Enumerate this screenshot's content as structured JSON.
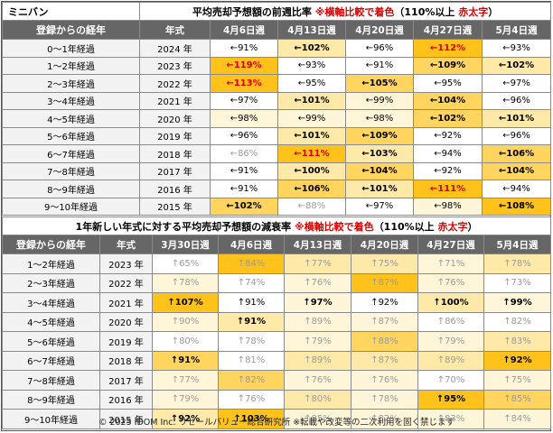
{
  "table1": {
    "corner": "ミニバン",
    "title_prefix": "平均売却予想額の前週比率 ",
    "title_note": "※横軸比較で着色",
    "title_paren_open": "（110%以上 ",
    "title_bold_red": "赤太字",
    "title_paren_close": "）",
    "col_label": "登録からの経年",
    "col_year": "年式",
    "weeks": [
      "4月6日週",
      "4月13日週",
      "4月20日週",
      "4月27日週",
      "5月4日週"
    ],
    "rows": [
      {
        "label": "0～1年経過",
        "year": "2024 年",
        "cells": [
          [
            "←91%",
            "0",
            "n"
          ],
          [
            "←102%",
            "2",
            "b"
          ],
          [
            "←96%",
            "0",
            "n"
          ],
          [
            "←112%",
            "4",
            "r"
          ],
          [
            "←93%",
            "0",
            "n"
          ]
        ]
      },
      {
        "label": "1～2年経過",
        "year": "2023 年",
        "cells": [
          [
            "←119%",
            "4",
            "r"
          ],
          [
            "←93%",
            "0",
            "n"
          ],
          [
            "←91%",
            "0",
            "n"
          ],
          [
            "←109%",
            "3",
            "b"
          ],
          [
            "←102%",
            "2",
            "b"
          ]
        ]
      },
      {
        "label": "2～3年経過",
        "year": "2022 年",
        "cells": [
          [
            "←113%",
            "4",
            "r"
          ],
          [
            "←95%",
            "0",
            "n"
          ],
          [
            "←105%",
            "3",
            "b"
          ],
          [
            "←95%",
            "0",
            "n"
          ],
          [
            "←97%",
            "0",
            "n"
          ]
        ]
      },
      {
        "label": "3～4年経過",
        "year": "2021 年",
        "cells": [
          [
            "←97%",
            "0",
            "n"
          ],
          [
            "←101%",
            "2",
            "b"
          ],
          [
            "←99%",
            "1",
            "n"
          ],
          [
            "←104%",
            "3",
            "b"
          ],
          [
            "←96%",
            "0",
            "n"
          ]
        ]
      },
      {
        "label": "4～5年経過",
        "year": "2020 年",
        "cells": [
          [
            "←98%",
            "1",
            "n"
          ],
          [
            "←99%",
            "1",
            "n"
          ],
          [
            "←98%",
            "1",
            "n"
          ],
          [
            "←102%",
            "3",
            "b"
          ],
          [
            "←101%",
            "2",
            "b"
          ]
        ]
      },
      {
        "label": "5～6年経過",
        "year": "2019 年",
        "cells": [
          [
            "←96%",
            "0",
            "n"
          ],
          [
            "←101%",
            "2",
            "b"
          ],
          [
            "←109%",
            "3",
            "b"
          ],
          [
            "←92%",
            "0",
            "n"
          ],
          [
            "←96%",
            "0",
            "n"
          ]
        ]
      },
      {
        "label": "6～7年経過",
        "year": "2018 年",
        "cells": [
          [
            "←86%",
            "0",
            "d"
          ],
          [
            "←111%",
            "4",
            "r"
          ],
          [
            "←103%",
            "2",
            "b"
          ],
          [
            "←94%",
            "0",
            "n"
          ],
          [
            "←106%",
            "3",
            "b"
          ]
        ]
      },
      {
        "label": "7～8年経過",
        "year": "2017 年",
        "cells": [
          [
            "←91%",
            "0",
            "n"
          ],
          [
            "←100%",
            "2",
            "b"
          ],
          [
            "←104%",
            "3",
            "b"
          ],
          [
            "←92%",
            "0",
            "n"
          ],
          [
            "←104%",
            "3",
            "b"
          ]
        ]
      },
      {
        "label": "8～9年経過",
        "year": "2016 年",
        "cells": [
          [
            "←91%",
            "0",
            "n"
          ],
          [
            "←106%",
            "3",
            "b"
          ],
          [
            "←101%",
            "2",
            "b"
          ],
          [
            "←111%",
            "4",
            "r"
          ],
          [
            "←94%",
            "0",
            "n"
          ]
        ]
      },
      {
        "label": "9～10年経過",
        "year": "2015 年",
        "cells": [
          [
            "←102%",
            "3",
            "b"
          ],
          [
            "←88%",
            "0",
            "d"
          ],
          [
            "←97%",
            "0",
            "n"
          ],
          [
            "←98%",
            "1",
            "n"
          ],
          [
            "←108%",
            "4",
            "b"
          ]
        ]
      }
    ]
  },
  "table2": {
    "title_prefix": "1年新しい年式に対する平均売却予想額の減衰率 ",
    "title_note": "※横軸比較で着色",
    "title_paren_open": "（110%以上 ",
    "title_bold_red": "赤太字",
    "title_paren_close": "）",
    "col_label": "登録からの経年",
    "col_year": "年式",
    "weeks": [
      "3月30日週",
      "4月6日週",
      "4月13日週",
      "4月20日週",
      "4月27日週",
      "5月4日週"
    ],
    "rows": [
      {
        "label": "1～2年経過",
        "year": "2023 年",
        "cells": [
          [
            "↑65%",
            "0",
            "d"
          ],
          [
            "↑84%",
            "4",
            "d"
          ],
          [
            "↑77%",
            "2",
            "d"
          ],
          [
            "↑75%",
            "2",
            "d"
          ],
          [
            "↑71%",
            "1",
            "d"
          ],
          [
            "↑78%",
            "2",
            "d"
          ]
        ]
      },
      {
        "label": "2～3年経過",
        "year": "2022 年",
        "cells": [
          [
            "↑78%",
            "1",
            "d"
          ],
          [
            "↑74%",
            "0",
            "d"
          ],
          [
            "↑76%",
            "1",
            "d"
          ],
          [
            "↑87%",
            "4",
            "d"
          ],
          [
            "↑76%",
            "1",
            "d"
          ],
          [
            "↑73%",
            "0",
            "d"
          ]
        ]
      },
      {
        "label": "3～4年経過",
        "year": "2021 年",
        "cells": [
          [
            "↑107%",
            "4",
            "b"
          ],
          [
            "↑91%",
            "0",
            "n"
          ],
          [
            "↑97%",
            "1",
            "b"
          ],
          [
            "↑92%",
            "0",
            "n"
          ],
          [
            "↑100%",
            "2",
            "b"
          ],
          [
            "↑99%",
            "1",
            "b"
          ]
        ]
      },
      {
        "label": "4～5年経過",
        "year": "2020 年",
        "cells": [
          [
            "↑90%",
            "1",
            "d"
          ],
          [
            "↑91%",
            "2",
            "b"
          ],
          [
            "↑89%",
            "1",
            "d"
          ],
          [
            "↑87%",
            "1",
            "d"
          ],
          [
            "↑86%",
            "0",
            "d"
          ],
          [
            "↑82%",
            "0",
            "d"
          ]
        ]
      },
      {
        "label": "5～6年経過",
        "year": "2019 年",
        "cells": [
          [
            "↑80%",
            "0",
            "d"
          ],
          [
            "↑78%",
            "0",
            "d"
          ],
          [
            "↑79%",
            "1",
            "d"
          ],
          [
            "↑88%",
            "3",
            "d"
          ],
          [
            "↑79%",
            "1",
            "d"
          ],
          [
            "↑83%",
            "2",
            "d"
          ]
        ]
      },
      {
        "label": "6～7年経過",
        "year": "2018 年",
        "cells": [
          [
            "↑91%",
            "3",
            "b"
          ],
          [
            "↑81%",
            "0",
            "d"
          ],
          [
            "↑89%",
            "2",
            "d"
          ],
          [
            "↑87%",
            "2",
            "d"
          ],
          [
            "↑89%",
            "2",
            "d"
          ],
          [
            "↑92%",
            "4",
            "b"
          ]
        ]
      },
      {
        "label": "7～8年経過",
        "year": "2017 年",
        "cells": [
          [
            "↑77%",
            "1",
            "d"
          ],
          [
            "↑82%",
            "3",
            "d"
          ],
          [
            "↑76%",
            "1",
            "d"
          ],
          [
            "↑76%",
            "1",
            "d"
          ],
          [
            "↑70%",
            "0",
            "d"
          ],
          [
            "↑75%",
            "1",
            "d"
          ]
        ]
      },
      {
        "label": "8～9年経過",
        "year": "2016 年",
        "cells": [
          [
            "↑79%",
            "1",
            "d"
          ],
          [
            "↑76%",
            "0",
            "d"
          ],
          [
            "↑80%",
            "2",
            "d"
          ],
          [
            "↑78%",
            "1",
            "d"
          ],
          [
            "↑95%",
            "4",
            "b"
          ],
          [
            "↑85%",
            "3",
            "d"
          ]
        ]
      },
      {
        "label": "9～10年経過",
        "year": "2015 年",
        "cells": [
          [
            "↑92%",
            "2",
            "b"
          ],
          [
            "↑103%",
            "4",
            "b"
          ],
          [
            "↑85%",
            "1",
            "d"
          ],
          [
            "↑82%",
            "1",
            "d"
          ],
          [
            "↑83%",
            "1",
            "d"
          ],
          [
            "↑84%",
            "1",
            "d"
          ]
        ]
      }
    ]
  },
  "footer": "© 2025 IDOM Inc. リセールバリュー総合研究所 ※転載や改変等の二次利用を固く禁じます"
}
